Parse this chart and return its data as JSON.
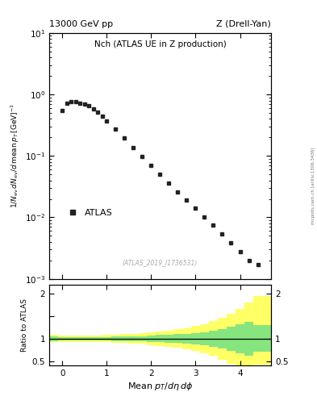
{
  "title_top_left": "13000 GeV pp",
  "title_top_right": "Z (Drell-Yan)",
  "plot_title": "Nch (ATLAS UE in Z production)",
  "ylabel_main": "1/N_{ev} dN_{ev}/d mean p_T [GeV]^{-1}",
  "ylabel_ratio": "Ratio to ATLAS",
  "xlabel": "Mean p_{T}/d\\eta d\\phi",
  "watermark": "(ATLAS_2019_I1736531)",
  "data_x": [
    0.0,
    0.1,
    0.2,
    0.3,
    0.4,
    0.5,
    0.6,
    0.7,
    0.8,
    0.9,
    1.0,
    1.2,
    1.4,
    1.6,
    1.8,
    2.0,
    2.2,
    2.4,
    2.6,
    2.8,
    3.0,
    3.2,
    3.4,
    3.6,
    3.8,
    4.0,
    4.2,
    4.4
  ],
  "data_y": [
    0.55,
    0.72,
    0.77,
    0.76,
    0.73,
    0.7,
    0.65,
    0.59,
    0.52,
    0.44,
    0.37,
    0.275,
    0.195,
    0.138,
    0.097,
    0.07,
    0.051,
    0.036,
    0.026,
    0.019,
    0.014,
    0.01,
    0.0074,
    0.0054,
    0.0038,
    0.0028,
    0.002,
    0.0017
  ],
  "ylim_main": [
    0.001,
    10
  ],
  "xlim": [
    -0.3,
    4.7
  ],
  "ylim_ratio": [
    0.4,
    2.2
  ],
  "ratio_x_edges": [
    -0.3,
    -0.1,
    0.1,
    0.3,
    0.5,
    0.7,
    0.9,
    1.1,
    1.3,
    1.5,
    1.7,
    1.9,
    2.1,
    2.3,
    2.5,
    2.7,
    2.9,
    3.1,
    3.3,
    3.5,
    3.7,
    3.9,
    4.1,
    4.3,
    4.7
  ],
  "ratio_green_upper": [
    1.05,
    1.04,
    1.04,
    1.04,
    1.04,
    1.04,
    1.04,
    1.05,
    1.05,
    1.06,
    1.06,
    1.07,
    1.08,
    1.09,
    1.1,
    1.11,
    1.13,
    1.15,
    1.18,
    1.22,
    1.27,
    1.33,
    1.38,
    1.3
  ],
  "ratio_green_lower": [
    0.95,
    0.96,
    0.96,
    0.96,
    0.96,
    0.96,
    0.96,
    0.95,
    0.95,
    0.94,
    0.94,
    0.93,
    0.92,
    0.91,
    0.9,
    0.89,
    0.87,
    0.85,
    0.82,
    0.78,
    0.73,
    0.67,
    0.62,
    0.7
  ],
  "ratio_yellow_upper": [
    1.08,
    1.07,
    1.07,
    1.07,
    1.07,
    1.07,
    1.08,
    1.09,
    1.1,
    1.11,
    1.12,
    1.14,
    1.16,
    1.18,
    1.21,
    1.24,
    1.28,
    1.33,
    1.39,
    1.47,
    1.56,
    1.67,
    1.8,
    1.95
  ],
  "ratio_yellow_lower": [
    0.92,
    0.93,
    0.93,
    0.93,
    0.93,
    0.93,
    0.92,
    0.91,
    0.9,
    0.89,
    0.88,
    0.86,
    0.84,
    0.82,
    0.79,
    0.76,
    0.72,
    0.67,
    0.61,
    0.53,
    0.44,
    0.33,
    0.22,
    0.42
  ],
  "marker_color": "#222222",
  "green_color": "#86E57F",
  "yellow_color": "#FFFF66",
  "side_label": "mcplots.cern.ch [arXiv:1306.3436]"
}
